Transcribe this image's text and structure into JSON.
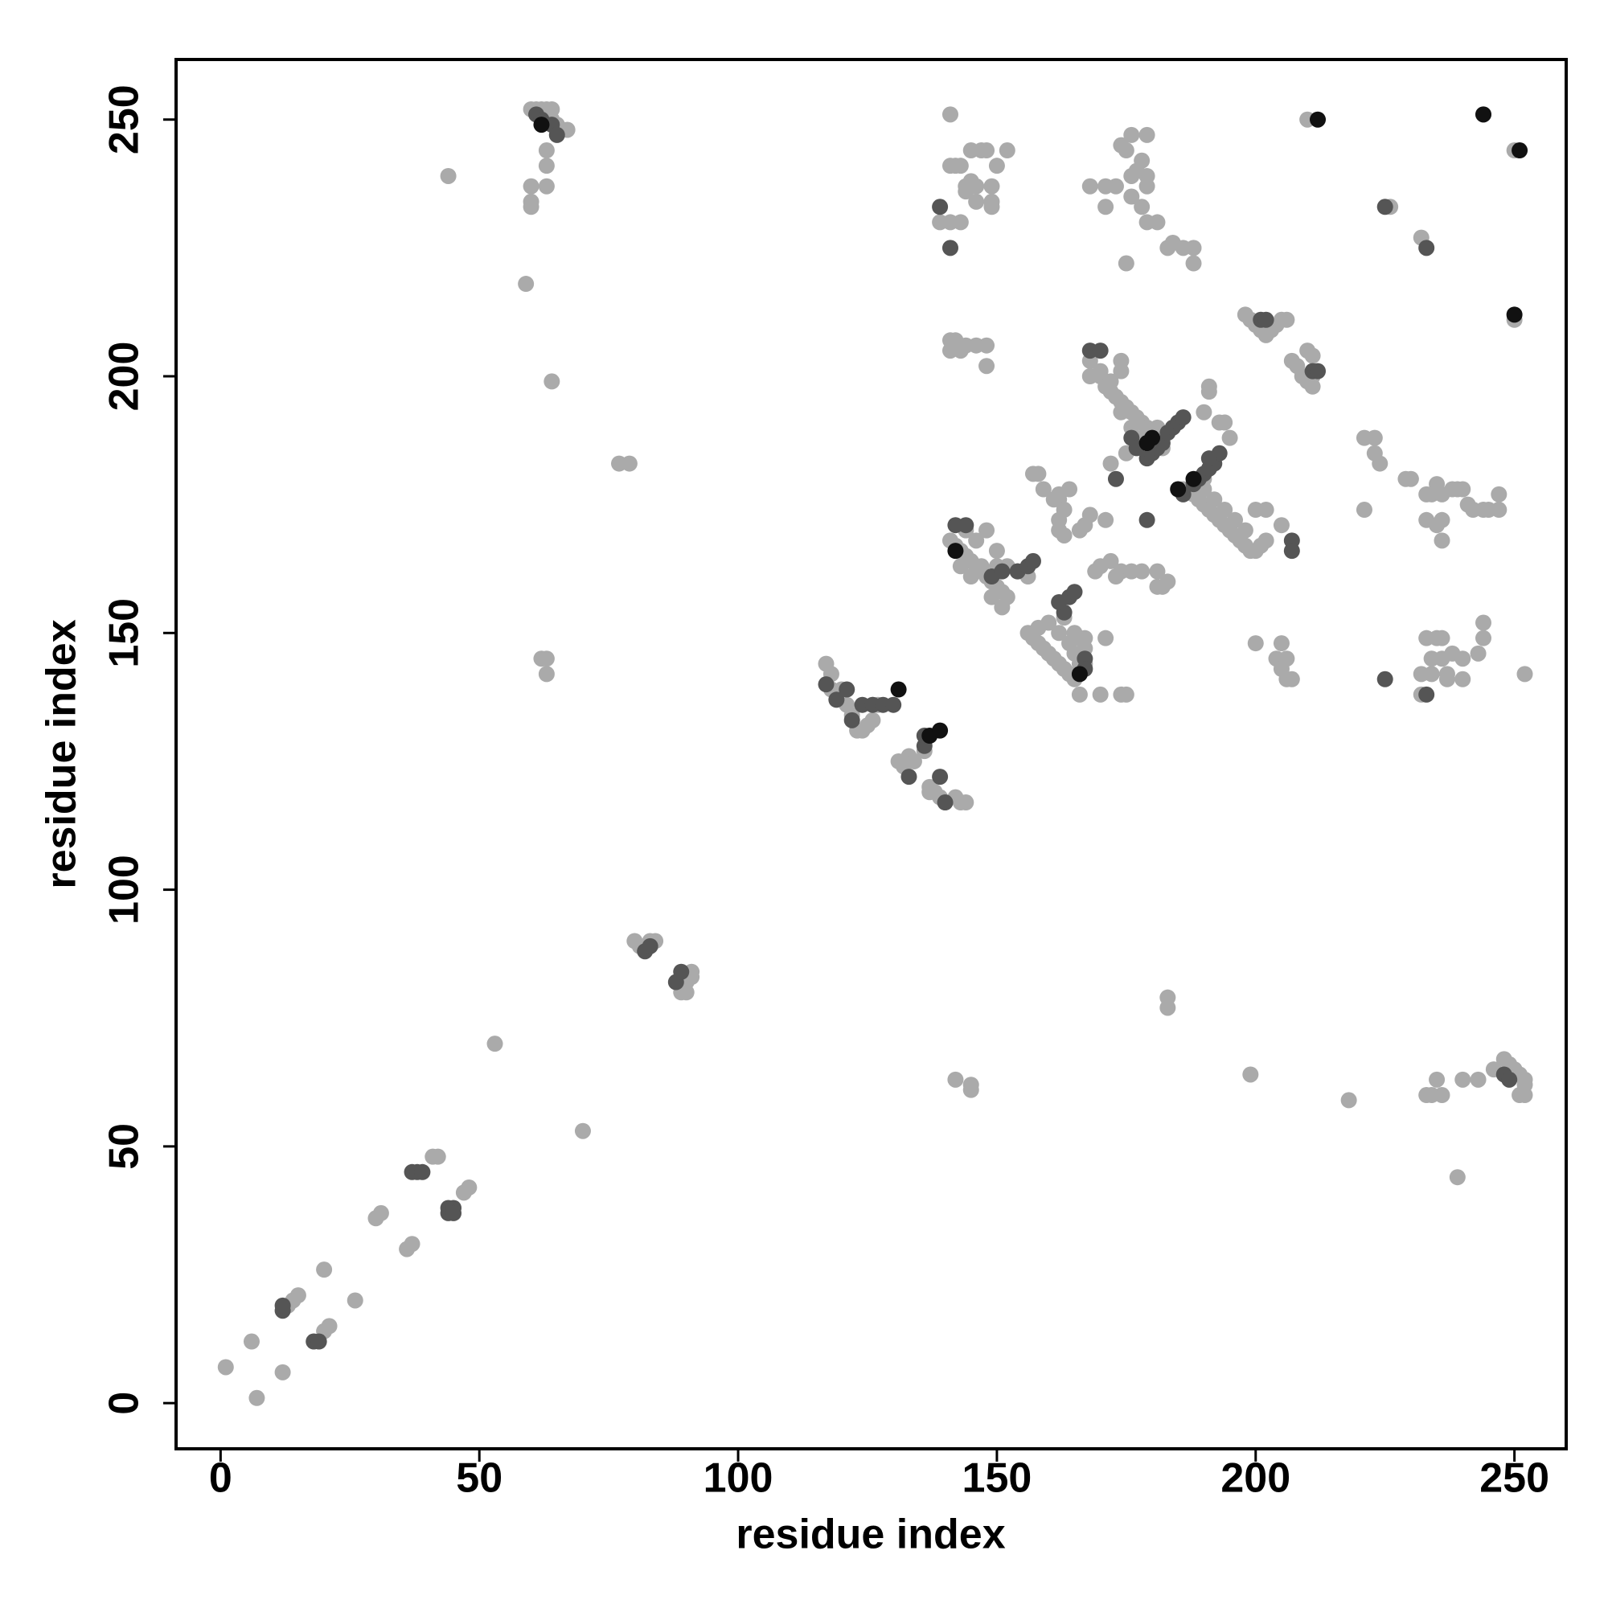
{
  "chart_data": {
    "type": "scatter",
    "x_label": "residue index",
    "y_label": "residue index",
    "xlim": [
      -8.6,
      260
    ],
    "ylim": [
      -8.9,
      261.7
    ],
    "xticks": [
      0,
      50,
      100,
      150,
      200,
      250
    ],
    "yticks": [
      0,
      50,
      100,
      150,
      200,
      250
    ],
    "series": [
      {
        "color": "#aaaaaa",
        "x": [
          1,
          6,
          7,
          12,
          13,
          14,
          15,
          20,
          20,
          21,
          26,
          30,
          31,
          36,
          37,
          41,
          42,
          47,
          48,
          44,
          53,
          70,
          59,
          60,
          60,
          60,
          60,
          61,
          62,
          63,
          64,
          63,
          63,
          63,
          64,
          65,
          66,
          67,
          64,
          62,
          63,
          63,
          77,
          79,
          80,
          81,
          83,
          84,
          89,
          90,
          90,
          91,
          91,
          117,
          118,
          118,
          119,
          120,
          121,
          122,
          123,
          124,
          125,
          126,
          126,
          127,
          131,
          132,
          133,
          134,
          136,
          137,
          137,
          138,
          139,
          140,
          142,
          143,
          144,
          141,
          142,
          141,
          143,
          144,
          145,
          145,
          146,
          147,
          148,
          149,
          149,
          149,
          150,
          152,
          141,
          143,
          144,
          146,
          139,
          141,
          142,
          143,
          144,
          146,
          148,
          148,
          141,
          176,
          179,
          174,
          175,
          176,
          177,
          178,
          179,
          179,
          176,
          173,
          171,
          168,
          171,
          178,
          179,
          181,
          175,
          183,
          184,
          186,
          188,
          188,
          157,
          158,
          159,
          162,
          162,
          163,
          162,
          162,
          163,
          161,
          164,
          168,
          168,
          170,
          171,
          172,
          173,
          174,
          175,
          176,
          177,
          178,
          179,
          180,
          181,
          170,
          172,
          174,
          176,
          178,
          180,
          182,
          174,
          174,
          190,
          191,
          191,
          193,
          194,
          195,
          141,
          142,
          143,
          144,
          145,
          146,
          147,
          148,
          149,
          150,
          151,
          152,
          144,
          146,
          148,
          150,
          152,
          154,
          156,
          149,
          151,
          143,
          145,
          147,
          150,
          156,
          157,
          158,
          159,
          160,
          161,
          162,
          163,
          164,
          165,
          160,
          162,
          164,
          166,
          167,
          158,
          163,
          165,
          166,
          165,
          169,
          170,
          172,
          174,
          176,
          178,
          181,
          182,
          183,
          181,
          173,
          166,
          167,
          168,
          167,
          167,
          166,
          166,
          170,
          171,
          174,
          175,
          188,
          189,
          190,
          191,
          192,
          193,
          194,
          195,
          196,
          197,
          198,
          199,
          200,
          201,
          202,
          190,
          192,
          194,
          196,
          198,
          200,
          202,
          205,
          190,
          186,
          198,
          199,
          200,
          201,
          202,
          203,
          204,
          205,
          206,
          207,
          208,
          209,
          210,
          210,
          211,
          211,
          211,
          210,
          221,
          223,
          223,
          224,
          221,
          226,
          232,
          229,
          230,
          233,
          234,
          235,
          236,
          238,
          239,
          240,
          241,
          242,
          244,
          245,
          247,
          247,
          233,
          235,
          236,
          236,
          232,
          232,
          233,
          235,
          236,
          234,
          236,
          237,
          238,
          240,
          240,
          243,
          244,
          244,
          234,
          237,
          252,
          200,
          204,
          205,
          206,
          205,
          207,
          206,
          183,
          183,
          142,
          145,
          145,
          199,
          218,
          233,
          234,
          235,
          236,
          240,
          243,
          239,
          246,
          248,
          249,
          250,
          251,
          252,
          252,
          251,
          252,
          244,
          250,
          250,
          175,
          172,
          171
        ],
        "y": [
          7,
          12,
          1,
          6,
          19,
          20,
          21,
          26,
          14,
          15,
          20,
          36,
          37,
          30,
          31,
          48,
          48,
          41,
          42,
          239,
          70,
          53,
          218,
          237,
          233,
          234,
          252,
          252,
          252,
          252,
          252,
          244,
          241,
          237,
          250,
          249,
          248,
          248,
          199,
          145,
          145,
          142,
          183,
          183,
          90,
          89,
          90,
          90,
          80,
          80,
          82,
          84,
          83,
          144,
          142,
          139,
          137,
          139,
          136,
          134,
          131,
          131,
          132,
          133,
          136,
          136,
          125,
          124,
          126,
          125,
          127,
          120,
          119,
          119,
          118,
          117,
          118,
          117,
          117,
          251,
          241,
          241,
          241,
          237,
          244,
          238,
          237,
          244,
          244,
          237,
          233,
          234,
          241,
          244,
          230,
          230,
          236,
          234,
          230,
          207,
          207,
          205,
          206,
          206,
          206,
          202,
          205,
          247,
          247,
          245,
          244,
          239,
          240,
          242,
          239,
          237,
          235,
          237,
          237,
          237,
          233,
          233,
          230,
          230,
          222,
          225,
          226,
          225,
          225,
          222,
          181,
          181,
          178,
          177,
          176,
          174,
          172,
          170,
          169,
          176,
          178,
          203,
          200,
          200,
          198,
          197,
          196,
          195,
          194,
          193,
          192,
          191,
          190,
          189,
          190,
          201,
          199,
          193,
          190,
          188,
          187,
          186,
          203,
          201,
          193,
          198,
          197,
          191,
          191,
          188,
          168,
          167,
          166,
          165,
          164,
          163,
          162,
          161,
          160,
          159,
          158,
          157,
          170,
          168,
          170,
          166,
          163,
          162,
          161,
          157,
          155,
          163,
          161,
          163,
          163,
          150,
          149,
          148,
          147,
          146,
          145,
          144,
          143,
          142,
          141,
          152,
          150,
          148,
          146,
          144,
          151,
          153,
          150,
          149,
          146,
          162,
          163,
          164,
          162,
          162,
          162,
          162,
          159,
          160,
          159,
          161,
          170,
          171,
          173,
          149,
          147,
          144,
          138,
          138,
          149,
          138,
          138,
          177,
          176,
          175,
          174,
          173,
          172,
          171,
          170,
          169,
          168,
          167,
          166,
          166,
          167,
          168,
          178,
          176,
          174,
          172,
          170,
          174,
          174,
          171,
          180,
          178,
          212,
          211,
          210,
          209,
          208,
          209,
          210,
          211,
          211,
          203,
          202,
          200,
          199,
          205,
          204,
          200,
          198,
          250,
          188,
          188,
          185,
          183,
          174,
          233,
          227,
          180,
          180,
          177,
          177,
          179,
          177,
          178,
          178,
          178,
          175,
          174,
          174,
          174,
          174,
          177,
          172,
          171,
          168,
          172,
          138,
          142,
          149,
          149,
          149,
          145,
          145,
          142,
          146,
          145,
          141,
          146,
          149,
          152,
          142,
          141,
          142,
          148,
          145,
          143,
          141,
          148,
          141,
          145,
          79,
          77,
          63,
          62,
          61,
          64,
          59,
          60,
          60,
          63,
          60,
          63,
          63,
          44,
          65,
          67,
          66,
          65,
          64,
          62,
          63,
          60,
          60,
          251,
          244,
          211,
          185,
          183,
          172
        ]
      },
      {
        "color": "#555555",
        "x": [
          12,
          12,
          18,
          19,
          37,
          38,
          39,
          44,
          44,
          45,
          45,
          82,
          83,
          88,
          89,
          61,
          62,
          64,
          65,
          117,
          119,
          121,
          122,
          124,
          126,
          128,
          130,
          133,
          136,
          136,
          139,
          140,
          139,
          141,
          142,
          144,
          149,
          151,
          154,
          156,
          157,
          163,
          164,
          165,
          162,
          167,
          167,
          173,
          179,
          168,
          170,
          176,
          177,
          179,
          180,
          181,
          182,
          183,
          184,
          185,
          186,
          188,
          189,
          190,
          191,
          192,
          193,
          191,
          186,
          207,
          207,
          201,
          202,
          211,
          212,
          225,
          225,
          233,
          233,
          248,
          249
        ],
        "y": [
          18,
          19,
          12,
          12,
          45,
          45,
          45,
          38,
          37,
          38,
          37,
          88,
          89,
          82,
          84,
          251,
          250,
          249,
          247,
          140,
          137,
          139,
          133,
          136,
          136,
          136,
          136,
          122,
          128,
          130,
          122,
          117,
          233,
          225,
          171,
          171,
          161,
          162,
          162,
          163,
          164,
          154,
          157,
          158,
          156,
          145,
          143,
          180,
          172,
          205,
          205,
          188,
          186,
          184,
          185,
          186,
          187,
          189,
          190,
          191,
          192,
          179,
          180,
          181,
          182,
          183,
          185,
          184,
          177,
          168,
          166,
          211,
          211,
          201,
          201,
          233,
          141,
          225,
          138,
          64,
          63
        ]
      },
      {
        "color": "#111111",
        "x": [
          62,
          131,
          137,
          139,
          142,
          166,
          180,
          188,
          212,
          244,
          251,
          250,
          185,
          179
        ],
        "y": [
          249,
          139,
          130,
          131,
          166,
          142,
          188,
          180,
          250,
          251,
          244,
          212,
          178,
          187
        ]
      }
    ]
  }
}
